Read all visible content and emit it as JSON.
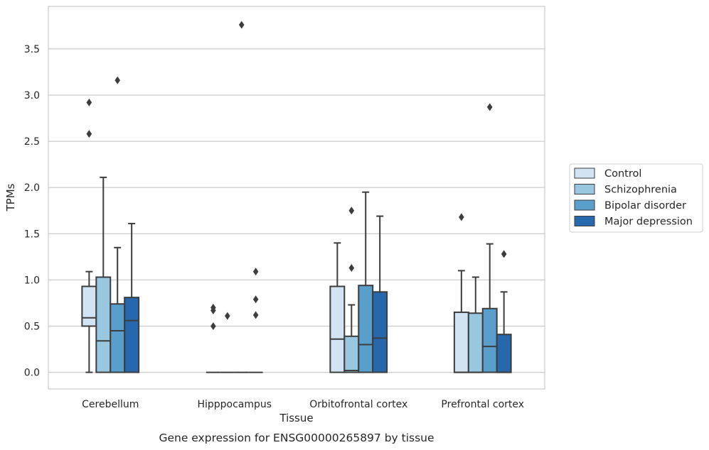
{
  "chart_data": {
    "type": "box",
    "title": "Gene expression for ENSG00000265897 by tissue",
    "xlabel": "Tissue",
    "ylabel": "TPMs",
    "ylim": [
      -0.18,
      3.96
    ],
    "yticks": [
      0.0,
      0.5,
      1.0,
      1.5,
      2.0,
      2.5,
      3.0,
      3.5
    ],
    "ytick_labels": [
      "0.0",
      "0.5",
      "1.0",
      "1.5",
      "2.0",
      "2.5",
      "3.0",
      "3.5"
    ],
    "grid": true,
    "legend_position": "right",
    "categories": [
      "Cerebellum",
      "Hipppocampus",
      "Orbitofrontal cortex",
      "Prefrontal cortex"
    ],
    "series": [
      {
        "name": "Control",
        "color": "#d2e3f3",
        "boxes": [
          {
            "min": 0.0,
            "q1": 0.5,
            "median": 0.59,
            "q3": 0.93,
            "max": 1.09,
            "outliers": [
              2.58,
              2.92
            ]
          },
          {
            "min": 0.0,
            "q1": 0.0,
            "median": 0.0,
            "q3": 0.0,
            "max": 0.0,
            "outliers": [
              0.5,
              0.67,
              0.7
            ]
          },
          {
            "min": 0.0,
            "q1": 0.0,
            "median": 0.36,
            "q3": 0.93,
            "max": 1.4,
            "outliers": []
          },
          {
            "min": 0.0,
            "q1": 0.0,
            "median": 0.0,
            "q3": 0.65,
            "max": 1.1,
            "outliers": [
              1.68
            ]
          }
        ]
      },
      {
        "name": "Schizophrenia",
        "color": "#9ac7e0",
        "boxes": [
          {
            "min": 0.0,
            "q1": 0.0,
            "median": 0.34,
            "q3": 1.03,
            "max": 2.11,
            "outliers": []
          },
          {
            "min": 0.0,
            "q1": 0.0,
            "median": 0.0,
            "q3": 0.0,
            "max": 0.0,
            "outliers": [
              0.61
            ]
          },
          {
            "min": 0.0,
            "q1": 0.0,
            "median": 0.02,
            "q3": 0.39,
            "max": 0.73,
            "outliers": [
              1.13,
              1.75
            ]
          },
          {
            "min": 0.0,
            "q1": 0.0,
            "median": 0.0,
            "q3": 0.64,
            "max": 1.03,
            "outliers": []
          }
        ]
      },
      {
        "name": "Bipolar disorder",
        "color": "#5a9fcb",
        "boxes": [
          {
            "min": 0.0,
            "q1": 0.0,
            "median": 0.45,
            "q3": 0.74,
            "max": 1.35,
            "outliers": [
              3.16
            ]
          },
          {
            "min": 0.0,
            "q1": 0.0,
            "median": 0.0,
            "q3": 0.0,
            "max": 0.0,
            "outliers": [
              3.76
            ]
          },
          {
            "min": 0.0,
            "q1": 0.0,
            "median": 0.3,
            "q3": 0.94,
            "max": 1.95,
            "outliers": []
          },
          {
            "min": 0.0,
            "q1": 0.0,
            "median": 0.28,
            "q3": 0.69,
            "max": 1.39,
            "outliers": [
              2.87
            ]
          }
        ]
      },
      {
        "name": "Major depression",
        "color": "#2767ab",
        "boxes": [
          {
            "min": 0.0,
            "q1": 0.0,
            "median": 0.56,
            "q3": 0.81,
            "max": 1.61,
            "outliers": []
          },
          {
            "min": 0.0,
            "q1": 0.0,
            "median": 0.0,
            "q3": 0.0,
            "max": 0.0,
            "outliers": [
              0.62,
              0.79,
              1.09
            ]
          },
          {
            "min": 0.0,
            "q1": 0.0,
            "median": 0.37,
            "q3": 0.87,
            "max": 1.69,
            "outliers": []
          },
          {
            "min": 0.0,
            "q1": 0.0,
            "median": 0.0,
            "q3": 0.41,
            "max": 0.87,
            "outliers": [
              1.28
            ]
          }
        ]
      }
    ]
  }
}
